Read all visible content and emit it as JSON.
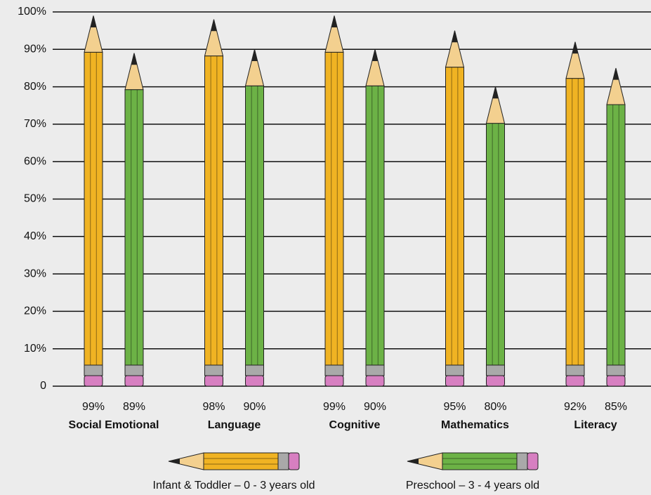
{
  "chart_data": {
    "type": "bar",
    "categories": [
      "Social Emotional",
      "Language",
      "Cognitive",
      "Mathematics",
      "Literacy"
    ],
    "series": [
      {
        "name": "Infant & Toddler – 0 - 3 years old",
        "color": "#f0b323",
        "values": [
          99,
          98,
          99,
          95,
          92
        ],
        "value_labels": [
          "99%",
          "98%",
          "99%",
          "95%",
          "92%"
        ]
      },
      {
        "name": "Preschool – 3 - 4 years old",
        "color": "#6cb246",
        "values": [
          89,
          90,
          90,
          80,
          85
        ],
        "value_labels": [
          "89%",
          "90%",
          "90%",
          "80%",
          "85%"
        ]
      }
    ],
    "ylim": [
      0,
      100
    ],
    "yticks": [
      0,
      {
        "value": 10,
        "label": "10%"
      },
      {
        "value": 20,
        "label": "20%"
      },
      {
        "value": 30,
        "label": "30%"
      },
      {
        "value": 40,
        "label": "40%"
      },
      {
        "value": 50,
        "label": "50%"
      },
      {
        "value": 60,
        "label": "60%"
      },
      {
        "value": 70,
        "label": "70%"
      },
      {
        "value": 80,
        "label": "80%"
      },
      {
        "value": 90,
        "label": "90%"
      },
      {
        "value": 100,
        "label": "100%"
      }
    ],
    "grid": true,
    "legend": "bottom"
  }
}
